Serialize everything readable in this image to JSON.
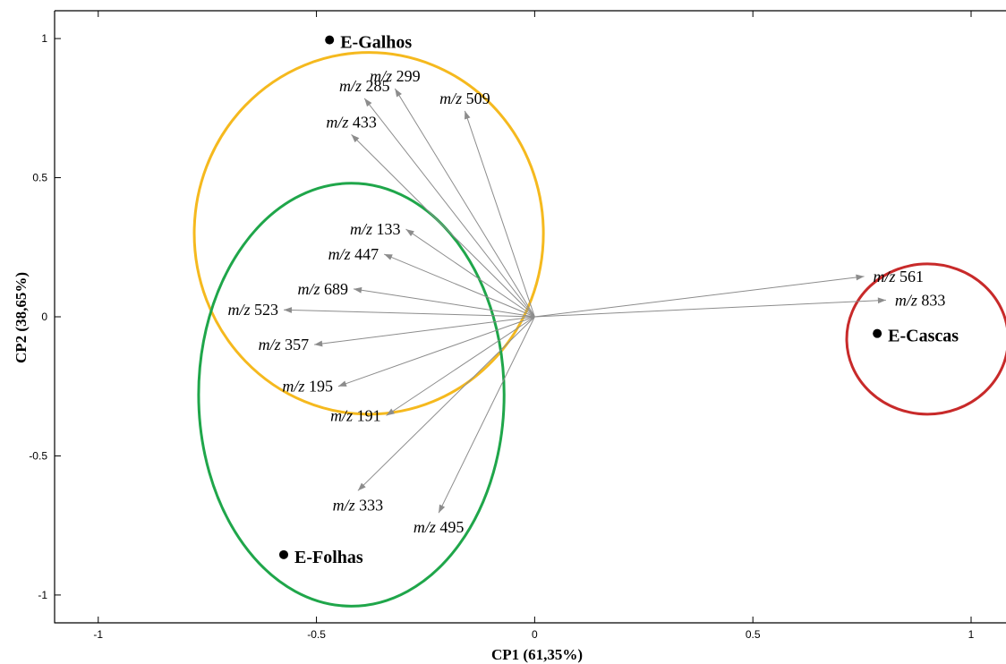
{
  "chart_data": {
    "type": "scatter",
    "subtype": "pca-biplot",
    "xlabel": "CP1 (61,35%)",
    "ylabel": "CP2 (38,65%)",
    "xlim": [
      -1.1,
      1.08
    ],
    "ylim": [
      -1.1,
      1.1
    ],
    "xticks": [
      -1,
      -0.5,
      0,
      0.5,
      1
    ],
    "xtick_labels": [
      "-1",
      "-0.5",
      "0",
      "0.5",
      "1"
    ],
    "yticks": [
      1,
      0.5,
      0,
      -0.5,
      -1
    ],
    "ytick_labels": [
      "1",
      "0.5",
      "0",
      "-0.5",
      "-1"
    ],
    "grid": false,
    "origin": [
      0,
      0
    ],
    "loadings": [
      {
        "label": "m/z 285",
        "x": -0.39,
        "y": 0.785
      },
      {
        "label": "m/z 299",
        "x": -0.32,
        "y": 0.82
      },
      {
        "label": "m/z 509",
        "x": -0.16,
        "y": 0.74
      },
      {
        "label": "m/z 433",
        "x": -0.42,
        "y": 0.655
      },
      {
        "label": "m/z 133",
        "x": -0.295,
        "y": 0.315
      },
      {
        "label": "m/z 447",
        "x": -0.345,
        "y": 0.225
      },
      {
        "label": "m/z 689",
        "x": -0.415,
        "y": 0.1
      },
      {
        "label": "m/z 523",
        "x": -0.575,
        "y": 0.025
      },
      {
        "label": "m/z 357",
        "x": -0.505,
        "y": -0.1
      },
      {
        "label": "m/z 195",
        "x": -0.45,
        "y": -0.25
      },
      {
        "label": "m/z 191",
        "x": -0.34,
        "y": -0.355
      },
      {
        "label": "m/z 333",
        "x": -0.405,
        "y": -0.625
      },
      {
        "label": "m/z 495",
        "x": -0.22,
        "y": -0.705
      },
      {
        "label": "m/z 561",
        "x": 0.755,
        "y": 0.145
      },
      {
        "label": "m/z 833",
        "x": 0.805,
        "y": 0.06
      }
    ],
    "samples": [
      {
        "label": "E-Galhos",
        "x": -0.47,
        "y": 0.995
      },
      {
        "label": "E-Folhas",
        "x": -0.575,
        "y": -0.855
      },
      {
        "label": "E-Cascas",
        "x": 0.785,
        "y": -0.06
      }
    ],
    "groups": [
      {
        "color": "#F5B91E",
        "cx": -0.38,
        "cy": 0.3,
        "rx": 0.4,
        "ry": 0.65
      },
      {
        "color": "#1FA64A",
        "cx": -0.42,
        "cy": -0.28,
        "rx": 0.35,
        "ry": 0.76
      },
      {
        "color": "#C82A2A",
        "cx": 0.9,
        "cy": -0.08,
        "rx": 0.185,
        "ry": 0.27
      }
    ],
    "vector_color": "#8C8C8C"
  }
}
